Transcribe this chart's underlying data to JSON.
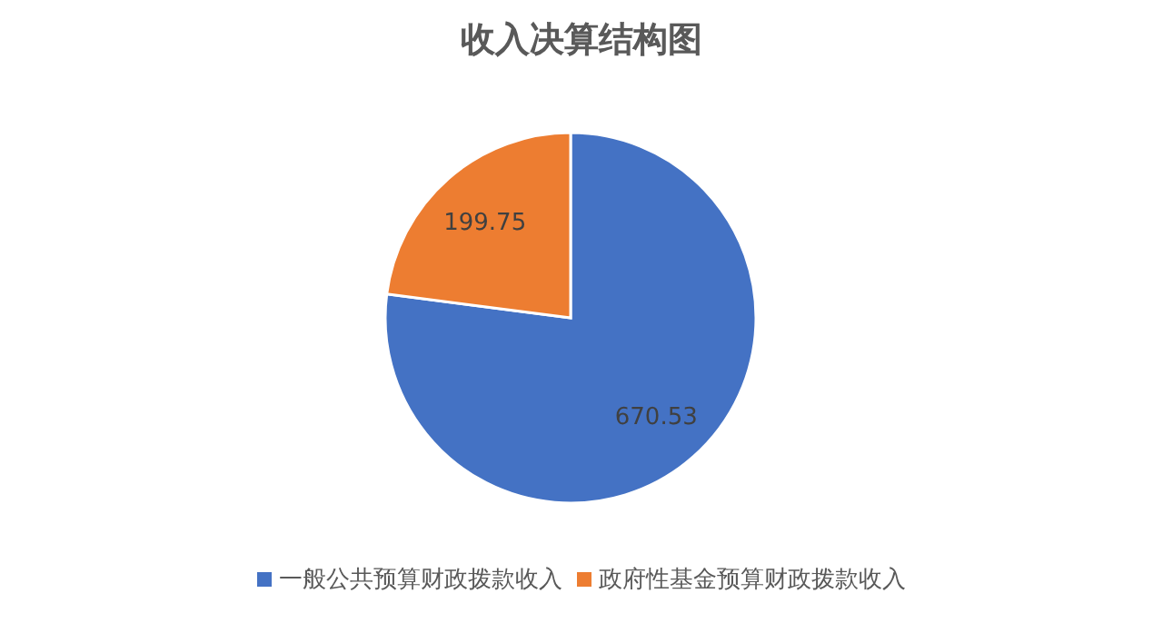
{
  "chart_data": {
    "type": "pie",
    "title": "收入决算结构图",
    "categories": [
      "一般公共预算财政拨款收入",
      "政府性基金预算财政拨款收入"
    ],
    "values": [
      670.53,
      199.75
    ],
    "colors": [
      "#4472c4",
      "#ed7d31"
    ],
    "data_labels": true,
    "legend": "bottom"
  }
}
